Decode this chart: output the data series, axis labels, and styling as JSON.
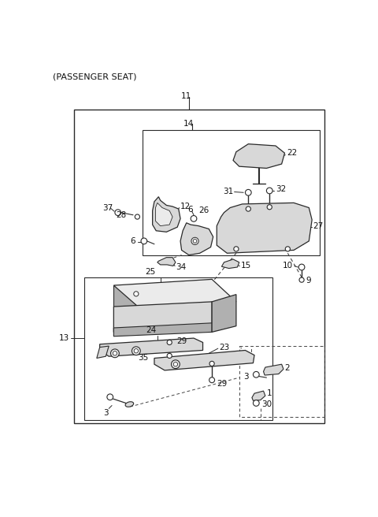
{
  "title": "(PASSENGER SEAT)",
  "bg_color": "#ffffff",
  "line_color": "#2a2a2a",
  "gray_fill": "#d8d8d8",
  "gray_dark": "#b0b0b0",
  "gray_light": "#ebebeb",
  "figsize": [
    4.8,
    6.56
  ],
  "dpi": 100
}
